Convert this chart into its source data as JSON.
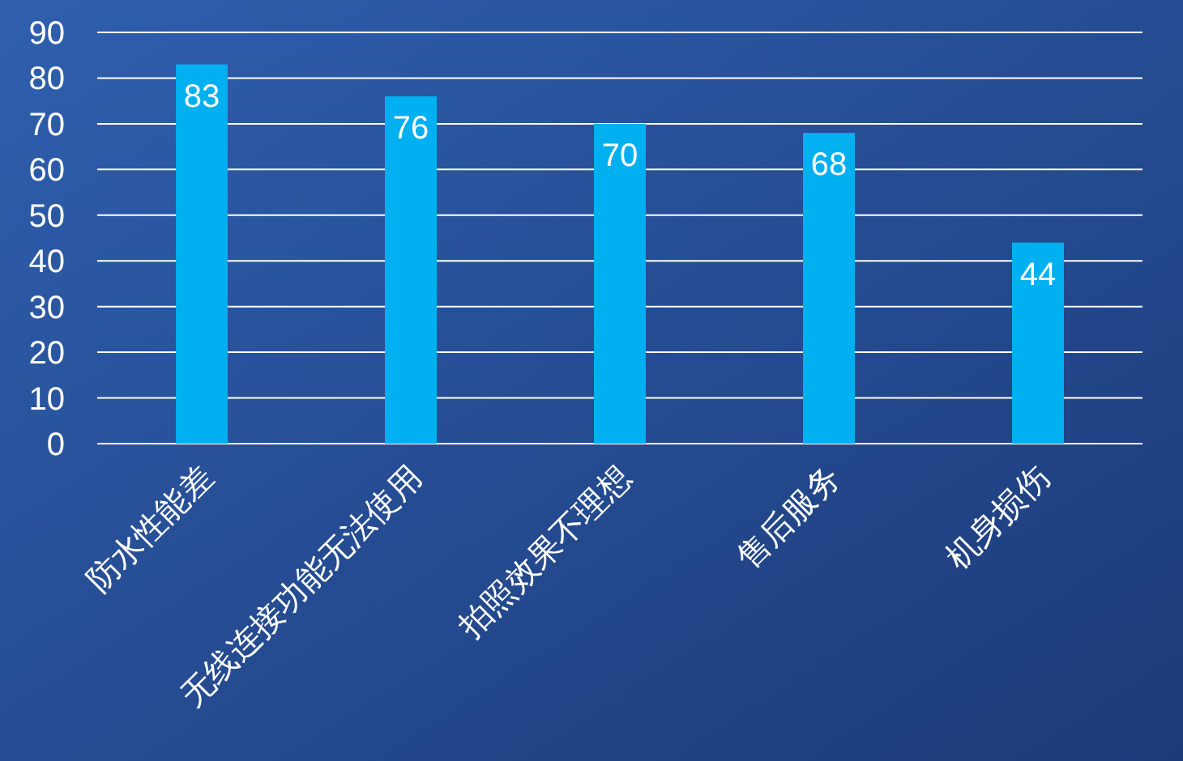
{
  "chart_data": {
    "type": "bar",
    "categories": [
      "防水性能差",
      "无线连接功能无法使用",
      "拍照效果不理想",
      "售后服务",
      "机身损伤"
    ],
    "values": [
      83,
      76,
      70,
      68,
      44
    ],
    "color": "#00b0f0",
    "ylim": [
      0,
      90
    ],
    "yticks": [
      0,
      10,
      20,
      30,
      40,
      50,
      60,
      70,
      80,
      90
    ],
    "grid": "y",
    "data_labels": true
  }
}
